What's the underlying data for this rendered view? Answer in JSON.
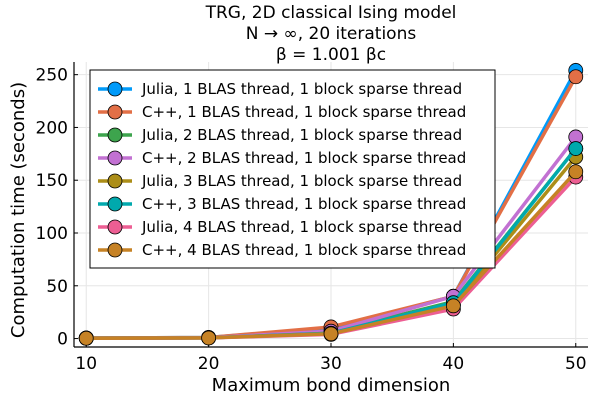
{
  "chart_data": {
    "type": "line",
    "title_lines": [
      "TRG, 2D classical Ising model",
      "N → ∞, 20 iterations",
      "β = 1.001 βc"
    ],
    "xlabel": "Maximum bond dimension",
    "ylabel": "Computation time (seconds)",
    "xlim": [
      9,
      51
    ],
    "ylim": [
      -8,
      262
    ],
    "xticks": [
      10,
      20,
      30,
      40,
      50
    ],
    "yticks": [
      0,
      50,
      100,
      150,
      200,
      250
    ],
    "grid": true,
    "legend_position": "top-left",
    "x": [
      10,
      20,
      30,
      40,
      50
    ],
    "series": [
      {
        "name": "Julia, 1 BLAS thread, 1 block sparse thread",
        "color": "#009af9",
        "values": [
          0.5,
          1.0,
          10.0,
          40.0,
          254
        ]
      },
      {
        "name": "C++, 1 BLAS thread, 1 block sparse thread",
        "color": "#e26f46",
        "values": [
          0.5,
          1.0,
          11.0,
          40.0,
          248
        ]
      },
      {
        "name": "Julia, 2 BLAS thread, 1 block sparse thread",
        "color": "#3da44d",
        "values": [
          0.4,
          0.8,
          6.0,
          35.0,
          180
        ]
      },
      {
        "name": "C++, 2 BLAS thread, 1 block sparse thread",
        "color": "#c271d2",
        "values": [
          0.4,
          0.8,
          7.0,
          40.0,
          191
        ]
      },
      {
        "name": "Julia, 3 BLAS thread, 1 block sparse thread",
        "color": "#ac8e18",
        "values": [
          0.3,
          0.7,
          5.0,
          32.0,
          172
        ]
      },
      {
        "name": "C++, 3 BLAS thread, 1 block sparse thread",
        "color": "#00a9ad",
        "values": [
          0.3,
          0.7,
          5.0,
          34.0,
          180
        ]
      },
      {
        "name": "Julia, 4 BLAS thread, 1 block sparse thread",
        "color": "#ed5e93",
        "values": [
          0.3,
          0.6,
          4.0,
          28.0,
          153
        ]
      },
      {
        "name": "C++, 4 BLAS thread, 1 block sparse thread",
        "color": "#c68225",
        "values": [
          0.3,
          0.6,
          4.5,
          31.0,
          158
        ]
      }
    ]
  }
}
